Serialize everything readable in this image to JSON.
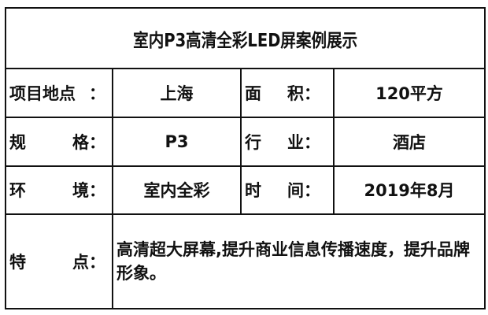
{
  "title": "室内P3高清全彩LED屏案例展示",
  "rows": [
    {
      "label1": [
        "项目地点",
        "："
      ],
      "value1": "上海",
      "label2": [
        "面",
        "积："
      ],
      "value2": "120平方"
    },
    {
      "label1": [
        "规",
        "格："
      ],
      "value1": "P3",
      "label2": [
        "行",
        "业："
      ],
      "value2": "酒店"
    },
    {
      "label1": [
        "环",
        "境："
      ],
      "value1": "室内全彩",
      "label2": [
        "时",
        "间："
      ],
      "value2": "2019年8月"
    }
  ],
  "features": {
    "label": [
      "特",
      "点："
    ],
    "text": "高清超大屏幕,提升商业信息传播速度，提升品牌形象。"
  }
}
